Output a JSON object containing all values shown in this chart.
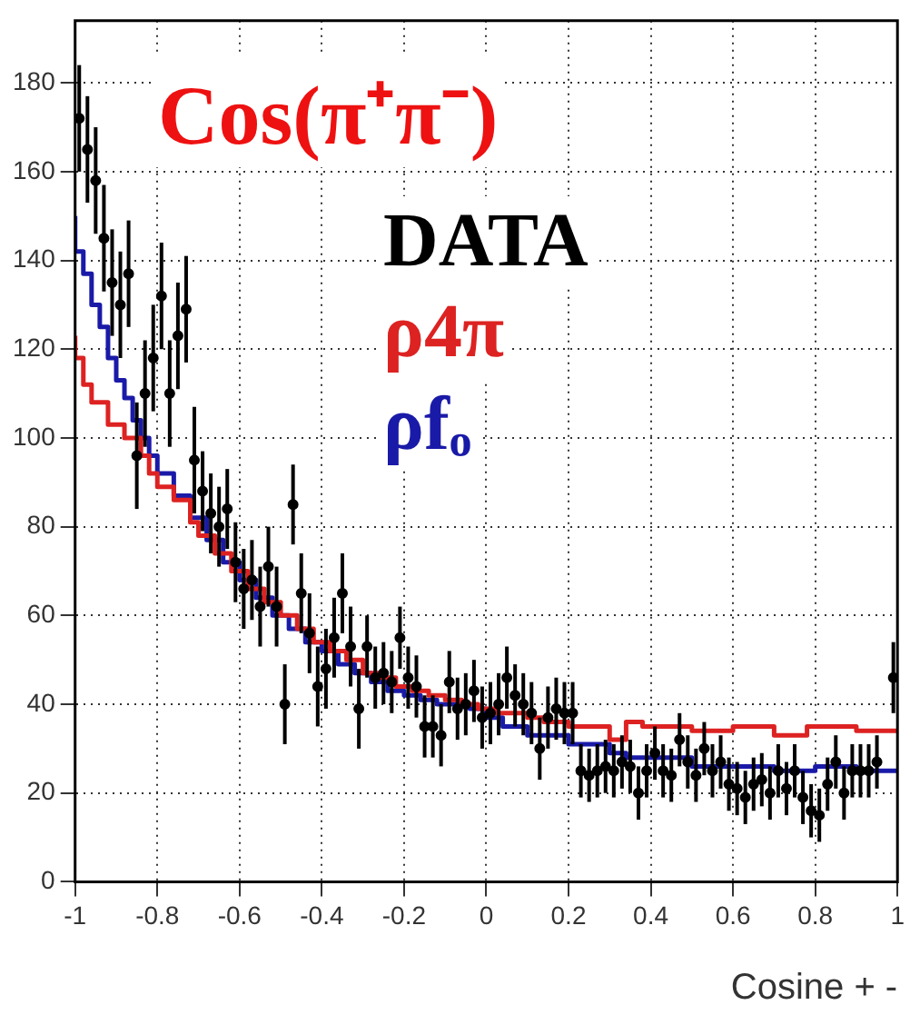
{
  "chart_data": {
    "type": "scatter",
    "title": "Cos(π⁺π⁻)",
    "xlabel": "Cosine + -",
    "xlim": [
      -1,
      1
    ],
    "xticks": [
      -1,
      -0.8,
      -0.6,
      -0.4,
      -0.2,
      0,
      0.2,
      0.4,
      0.6,
      0.8,
      1
    ],
    "ylim": [
      0,
      194
    ],
    "yticks": [
      0,
      20,
      40,
      60,
      80,
      100,
      120,
      140,
      160,
      180
    ],
    "grid": true,
    "legend": "top",
    "marker": "none",
    "series": [
      {
        "name": "DATA",
        "color": "#000000",
        "marker": "circle",
        "x": [
          -0.99,
          -0.97,
          -0.95,
          -0.93,
          -0.91,
          -0.89,
          -0.87,
          -0.85,
          -0.83,
          -0.81,
          -0.79,
          -0.77,
          -0.75,
          -0.73,
          -0.71,
          -0.69,
          -0.67,
          -0.65,
          -0.63,
          -0.61,
          -0.59,
          -0.57,
          -0.55,
          -0.53,
          -0.51,
          -0.49,
          -0.47,
          -0.45,
          -0.43,
          -0.41,
          -0.39,
          -0.37,
          -0.35,
          -0.33,
          -0.31,
          -0.29,
          -0.27,
          -0.25,
          -0.23,
          -0.21,
          -0.19,
          -0.17,
          -0.15,
          -0.13,
          -0.11,
          -0.09,
          -0.07,
          -0.05,
          -0.03,
          -0.01,
          0.01,
          0.03,
          0.05,
          0.07,
          0.09,
          0.11,
          0.13,
          0.15,
          0.17,
          0.19,
          0.21,
          0.23,
          0.25,
          0.27,
          0.29,
          0.31,
          0.33,
          0.35,
          0.37,
          0.39,
          0.41,
          0.43,
          0.45,
          0.47,
          0.49,
          0.51,
          0.53,
          0.55,
          0.57,
          0.59,
          0.61,
          0.63,
          0.65,
          0.67,
          0.69,
          0.71,
          0.73,
          0.75,
          0.77,
          0.79,
          0.81,
          0.83,
          0.85,
          0.87,
          0.89,
          0.91,
          0.93,
          0.95,
          0.99
        ],
        "values": [
          172,
          165,
          158,
          145,
          135,
          130,
          137,
          96,
          110,
          118,
          132,
          110,
          123,
          129,
          95,
          88,
          83,
          80,
          84,
          72,
          66,
          68,
          62,
          71,
          62,
          40,
          85,
          65,
          56,
          44,
          48,
          55,
          65,
          53,
          39,
          53,
          46,
          47,
          45,
          55,
          46,
          44,
          35,
          35,
          33,
          45,
          39,
          40,
          43,
          37,
          38,
          40,
          46,
          42,
          40,
          38,
          30,
          37,
          39,
          38,
          38,
          25,
          24,
          25,
          26,
          25,
          27,
          26,
          20,
          25,
          29,
          25,
          24,
          32,
          27,
          24,
          30,
          25,
          27,
          22,
          21,
          19,
          22,
          23,
          20,
          25,
          21,
          25,
          19,
          16,
          15,
          22,
          27,
          20,
          25,
          25,
          25,
          27,
          46
        ],
        "errors": [
          12,
          12,
          12,
          12,
          12,
          12,
          12,
          12,
          12,
          12,
          12,
          12,
          12,
          12,
          12,
          9,
          9,
          9,
          9,
          9,
          9,
          9,
          9,
          9,
          9,
          9,
          9,
          9,
          9,
          9,
          9,
          9,
          9,
          9,
          9,
          7,
          7,
          7,
          7,
          7,
          7,
          7,
          7,
          7,
          7,
          7,
          7,
          7,
          7,
          7,
          7,
          7,
          7,
          7,
          7,
          7,
          7,
          7,
          7,
          7,
          7,
          6,
          6,
          6,
          6,
          6,
          6,
          6,
          6,
          6,
          6,
          6,
          6,
          6,
          6,
          6,
          6,
          6,
          6,
          6,
          6,
          6,
          6,
          6,
          6,
          6,
          6,
          6,
          6,
          6,
          6,
          6,
          6,
          6,
          6,
          6,
          6,
          6,
          8
        ],
        "xerrors": [
          0.01,
          0.01,
          0.01,
          0.01,
          0.01,
          0.01,
          0.01,
          0.01,
          0.01,
          0.01,
          0.01,
          0.01,
          0.01,
          0.01,
          0.01,
          0.01,
          0.01,
          0.01,
          0.01,
          0.01,
          0.01,
          0.01,
          0.01,
          0.01,
          0.01,
          0.01,
          0.01,
          0.01,
          0.01,
          0.01,
          0.01,
          0.01,
          0.01,
          0.01,
          0.01,
          0.01,
          0.01,
          0.01,
          0.01,
          0.01,
          0.01,
          0.01,
          0.01,
          0.01,
          0.01,
          0.01,
          0.01,
          0.01,
          0.01,
          0.01,
          0.01,
          0.01,
          0.01,
          0.01,
          0.01,
          0.01,
          0.01,
          0.01,
          0.01,
          0.01,
          0.01,
          0.01,
          0.01,
          0.01,
          0.01,
          0.01,
          0.01,
          0.01,
          0.01,
          0.01,
          0.01,
          0.01,
          0.01,
          0.01,
          0.01,
          0.01,
          0.01,
          0.01,
          0.01,
          0.01,
          0.01,
          0.01,
          0.01,
          0.01,
          0.01,
          0.01,
          0.01,
          0.01,
          0.01,
          0.01,
          0.01,
          0.01,
          0.01,
          0.01,
          0.01,
          0.01,
          0.01,
          0.01,
          0.01
        ]
      },
      {
        "name": "ρ4π",
        "type": "step",
        "color": "#dd2222",
        "x": [
          -1,
          -0.98,
          -0.96,
          -0.92,
          -0.88,
          -0.84,
          -0.82,
          -0.8,
          -0.76,
          -0.72,
          -0.7,
          -0.66,
          -0.62,
          -0.58,
          -0.54,
          -0.5,
          -0.46,
          -0.42,
          -0.38,
          -0.34,
          -0.3,
          -0.26,
          -0.22,
          -0.18,
          -0.14,
          -0.1,
          -0.06,
          -0.02,
          0.02,
          0.06,
          0.1,
          0.14,
          0.2,
          0.3,
          0.34,
          0.38,
          0.5,
          0.6,
          0.7,
          0.78,
          0.82,
          0.9,
          0.96,
          1
        ],
        "values": [
          123,
          118,
          112,
          108,
          103,
          100,
          96,
          92,
          89,
          86,
          81,
          78,
          74,
          70,
          66,
          63,
          60,
          57,
          54,
          52,
          50,
          47,
          46,
          44,
          43,
          42,
          41,
          40,
          39,
          38,
          38,
          37,
          36,
          35,
          32,
          36,
          35,
          34,
          35,
          33,
          35,
          35,
          34,
          34
        ]
      },
      {
        "name": "ρfₒ",
        "type": "step",
        "color": "#1a1aa8",
        "x": [
          -1,
          -0.98,
          -0.96,
          -0.94,
          -0.92,
          -0.9,
          -0.88,
          -0.86,
          -0.84,
          -0.82,
          -0.8,
          -0.76,
          -0.72,
          -0.68,
          -0.64,
          -0.6,
          -0.56,
          -0.52,
          -0.48,
          -0.44,
          -0.4,
          -0.36,
          -0.32,
          -0.28,
          -0.24,
          -0.2,
          -0.16,
          -0.12,
          -0.08,
          -0.04,
          0,
          0.04,
          0.1,
          0.2,
          0.3,
          0.34,
          0.4,
          0.5,
          0.6,
          0.7,
          0.8,
          0.9,
          0.96,
          1
        ],
        "values": [
          150,
          142,
          137,
          130,
          125,
          118,
          113,
          109,
          104,
          100,
          96,
          92,
          87,
          82,
          77,
          72,
          68,
          64,
          60,
          57,
          54,
          52,
          49,
          47,
          45,
          43,
          42,
          41,
          40,
          40,
          39,
          37,
          35,
          33,
          31,
          29,
          28,
          28,
          26,
          26,
          25,
          26,
          25,
          25
        ]
      }
    ]
  }
}
